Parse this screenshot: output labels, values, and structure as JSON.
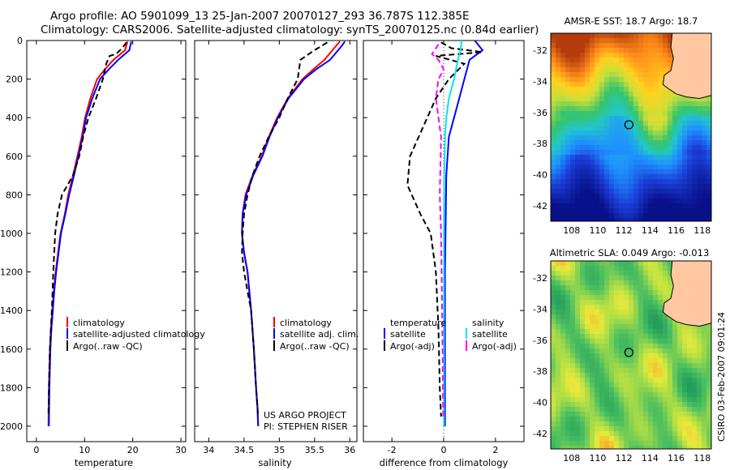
{
  "header": {
    "line1": "Argo profile: AO 5901099_13 25-Jan-2007 20070127_293 36.787S 112.385E",
    "line2": "Climatology: CARS2006. Satellite-adjusted climatology: synTS_20070125.nc (0.84d earlier)"
  },
  "colors": {
    "climatology": "#ff0000",
    "satellite": "#0000ff",
    "argo": "#000000",
    "salinity_satellite": "#00e5ee",
    "salinity_argo": "#ff00ff",
    "land": "#ffc8a0"
  },
  "chart_data": [
    {
      "type": "line",
      "id": "temperature",
      "xlabel": "temperature",
      "xlim": [
        -2,
        31
      ],
      "ylim": [
        2080,
        0
      ],
      "xticks": [
        0,
        10,
        20,
        30
      ],
      "yticks": [
        0,
        200,
        400,
        600,
        800,
        1000,
        1200,
        1400,
        1600,
        1800,
        2000
      ],
      "legend": [
        "climatology",
        "satellite-adjusted climatology",
        "Argo(..raw -QC)"
      ],
      "series": [
        {
          "name": "climatology",
          "color_key": "climatology",
          "style": "solid",
          "x": [
            18.9,
            18.4,
            16.0,
            14.2,
            12.6,
            11.2,
            10.1,
            9.4,
            8.5,
            7.6,
            6.6,
            5.9,
            5.0,
            4.5,
            4.0,
            3.6,
            3.3,
            3.0,
            2.8,
            2.7,
            2.6,
            2.5
          ],
          "y": [
            5,
            50,
            100,
            150,
            200,
            300,
            400,
            500,
            600,
            700,
            800,
            900,
            1000,
            1100,
            1200,
            1300,
            1400,
            1500,
            1600,
            1700,
            1800,
            2000
          ]
        },
        {
          "name": "satellite-adjusted climatology",
          "color_key": "satellite",
          "style": "solid",
          "x": [
            19.7,
            19.3,
            17.0,
            15.0,
            13.2,
            11.6,
            10.3,
            9.6,
            8.7,
            7.8,
            6.8,
            6.0,
            5.1,
            4.6,
            4.1,
            3.7,
            3.4,
            3.1,
            2.9,
            2.8,
            2.7,
            2.6
          ],
          "y": [
            5,
            50,
            100,
            150,
            200,
            300,
            400,
            500,
            600,
            700,
            800,
            900,
            1000,
            1100,
            1200,
            1300,
            1400,
            1500,
            1600,
            1700,
            1800,
            2000
          ]
        },
        {
          "name": "Argo(..raw -QC)",
          "color_key": "argo",
          "style": "dashed",
          "x": [
            18.7,
            17.8,
            16.5,
            15.2,
            14.5,
            13.8,
            12.4,
            10.8,
            9.7,
            8.9,
            7.6,
            5.3,
            4.4,
            3.9,
            3.5,
            3.2,
            3.0,
            2.8,
            2.7,
            2.6,
            2.5
          ],
          "y": [
            10,
            40,
            70,
            80,
            120,
            200,
            300,
            400,
            500,
            600,
            700,
            800,
            900,
            1000,
            1200,
            1400,
            1500,
            1600,
            1700,
            1800,
            1950
          ]
        }
      ]
    },
    {
      "type": "line",
      "id": "salinity",
      "xlabel": "salinity",
      "xlim": [
        33.8,
        36.1
      ],
      "ylim": [
        2080,
        0
      ],
      "xticks": [
        34,
        34.5,
        35,
        35.5,
        36
      ],
      "legend": [
        "climatology",
        "satellite adj. clim.",
        "Argo(..raw -QC)"
      ],
      "footer": [
        "US ARGO PROJECT",
        "PI: STEPHEN RISER"
      ],
      "series": [
        {
          "name": "climatology",
          "color_key": "climatology",
          "style": "solid",
          "x": [
            35.86,
            35.8,
            35.64,
            35.48,
            35.33,
            35.12,
            34.97,
            34.85,
            34.75,
            34.62,
            34.52,
            34.48,
            34.47,
            34.5,
            34.55,
            34.6,
            34.64,
            34.67,
            34.69,
            34.7
          ],
          "y": [
            5,
            30,
            100,
            150,
            200,
            300,
            400,
            500,
            600,
            700,
            800,
            900,
            1000,
            1100,
            1200,
            1400,
            1600,
            1800,
            1900,
            2000
          ]
        },
        {
          "name": "satellite adj. clim.",
          "color_key": "satellite",
          "style": "solid",
          "x": [
            35.93,
            35.88,
            35.72,
            35.52,
            35.35,
            35.13,
            34.98,
            34.86,
            34.76,
            34.63,
            34.53,
            34.48,
            34.47,
            34.5,
            34.55,
            34.6,
            34.64,
            34.67,
            34.69,
            34.7
          ],
          "y": [
            5,
            30,
            100,
            150,
            200,
            300,
            400,
            500,
            600,
            700,
            800,
            900,
            1000,
            1100,
            1200,
            1400,
            1600,
            1800,
            1900,
            2000
          ]
        },
        {
          "name": "Argo(..raw -QC)",
          "color_key": "argo",
          "style": "dashed",
          "x": [
            35.68,
            35.5,
            35.3,
            35.26,
            35.12,
            35.0,
            34.85,
            34.72,
            34.62,
            34.55,
            34.5,
            34.48,
            34.47,
            34.5,
            34.55,
            34.6,
            34.64,
            34.67,
            34.69,
            34.7
          ],
          "y": [
            10,
            50,
            100,
            200,
            300,
            400,
            500,
            600,
            700,
            800,
            900,
            1000,
            1100,
            1200,
            1300,
            1400,
            1600,
            1800,
            1900,
            1950
          ]
        }
      ]
    },
    {
      "type": "line",
      "id": "difference",
      "xlabel": "difference from climatology",
      "xlim": [
        -3.1,
        3.1
      ],
      "ylim": [
        2080,
        0
      ],
      "xticks": [
        -2,
        0,
        2
      ],
      "legend_left": [
        "temperature",
        "satellite",
        "Argo(-adj)"
      ],
      "legend_right": [
        "salinity",
        "satellite",
        "Argo(-adj)"
      ],
      "series": [
        {
          "name": "temperature satellite",
          "color_key": "satellite",
          "style": "solid",
          "x": [
            1.2,
            1.5,
            1.0,
            0.8,
            0.6,
            0.4,
            0.2,
            0.1,
            0.08,
            0.05,
            0.05,
            0.05,
            0.05
          ],
          "y": [
            0,
            50,
            100,
            200,
            300,
            400,
            500,
            700,
            900,
            1200,
            1500,
            1800,
            2000
          ]
        },
        {
          "name": "temperature Argo(-adj)",
          "color_key": "argo",
          "style": "dashed",
          "x": [
            -0.1,
            0.3,
            1.5,
            -0.3,
            0.8,
            0.2,
            -0.3,
            -1.3,
            -1.4,
            -0.9,
            -0.5,
            -0.3,
            -0.2,
            -0.15,
            -0.1
          ],
          "y": [
            10,
            40,
            60,
            80,
            120,
            200,
            300,
            600,
            750,
            900,
            1000,
            1200,
            1500,
            1800,
            1950
          ]
        },
        {
          "name": "salinity satellite",
          "color_key": "salinity_satellite",
          "style": "solid",
          "x": [
            0.7,
            0.65,
            0.55,
            0.4,
            0.2,
            0.1,
            0.05,
            0.02,
            0.01,
            0.01,
            0.01
          ],
          "y": [
            0,
            50,
            100,
            200,
            300,
            400,
            500,
            700,
            1000,
            1500,
            2000
          ]
        },
        {
          "name": "salinity Argo(-adj)",
          "color_key": "salinity_argo",
          "style": "dashed",
          "x": [
            -0.2,
            -0.45,
            -0.2,
            0.0,
            -0.2,
            -0.3,
            -0.1,
            -0.15,
            -0.1,
            -0.05,
            -0.02
          ],
          "y": [
            20,
            70,
            100,
            150,
            200,
            300,
            500,
            800,
            1000,
            1500,
            1950
          ]
        }
      ]
    }
  ],
  "maps": [
    {
      "id": "sst",
      "title": "AMSR-E SST: 18.7 Argo: 18.7",
      "xticks": [
        108,
        110,
        112,
        114,
        116,
        118
      ],
      "yticks": [
        -32,
        -34,
        -36,
        -38,
        -40,
        -42
      ],
      "lon_range": [
        106.4,
        118.7
      ],
      "lat_range": [
        -43.0,
        -30.9
      ],
      "marker": [
        112.385,
        -36.787
      ]
    },
    {
      "id": "sla",
      "title": "Altimetric SLA: 0.049 Argo: -0.013",
      "xticks": [
        108,
        110,
        112,
        114,
        116,
        118
      ],
      "yticks": [
        -32,
        -34,
        -36,
        -38,
        -40,
        -42
      ],
      "lon_range": [
        106.4,
        118.7
      ],
      "lat_range": [
        -43.0,
        -30.9
      ],
      "marker": [
        112.385,
        -36.787
      ]
    }
  ],
  "credit": "CSIRO 03-Feb-2007 09:01:24"
}
